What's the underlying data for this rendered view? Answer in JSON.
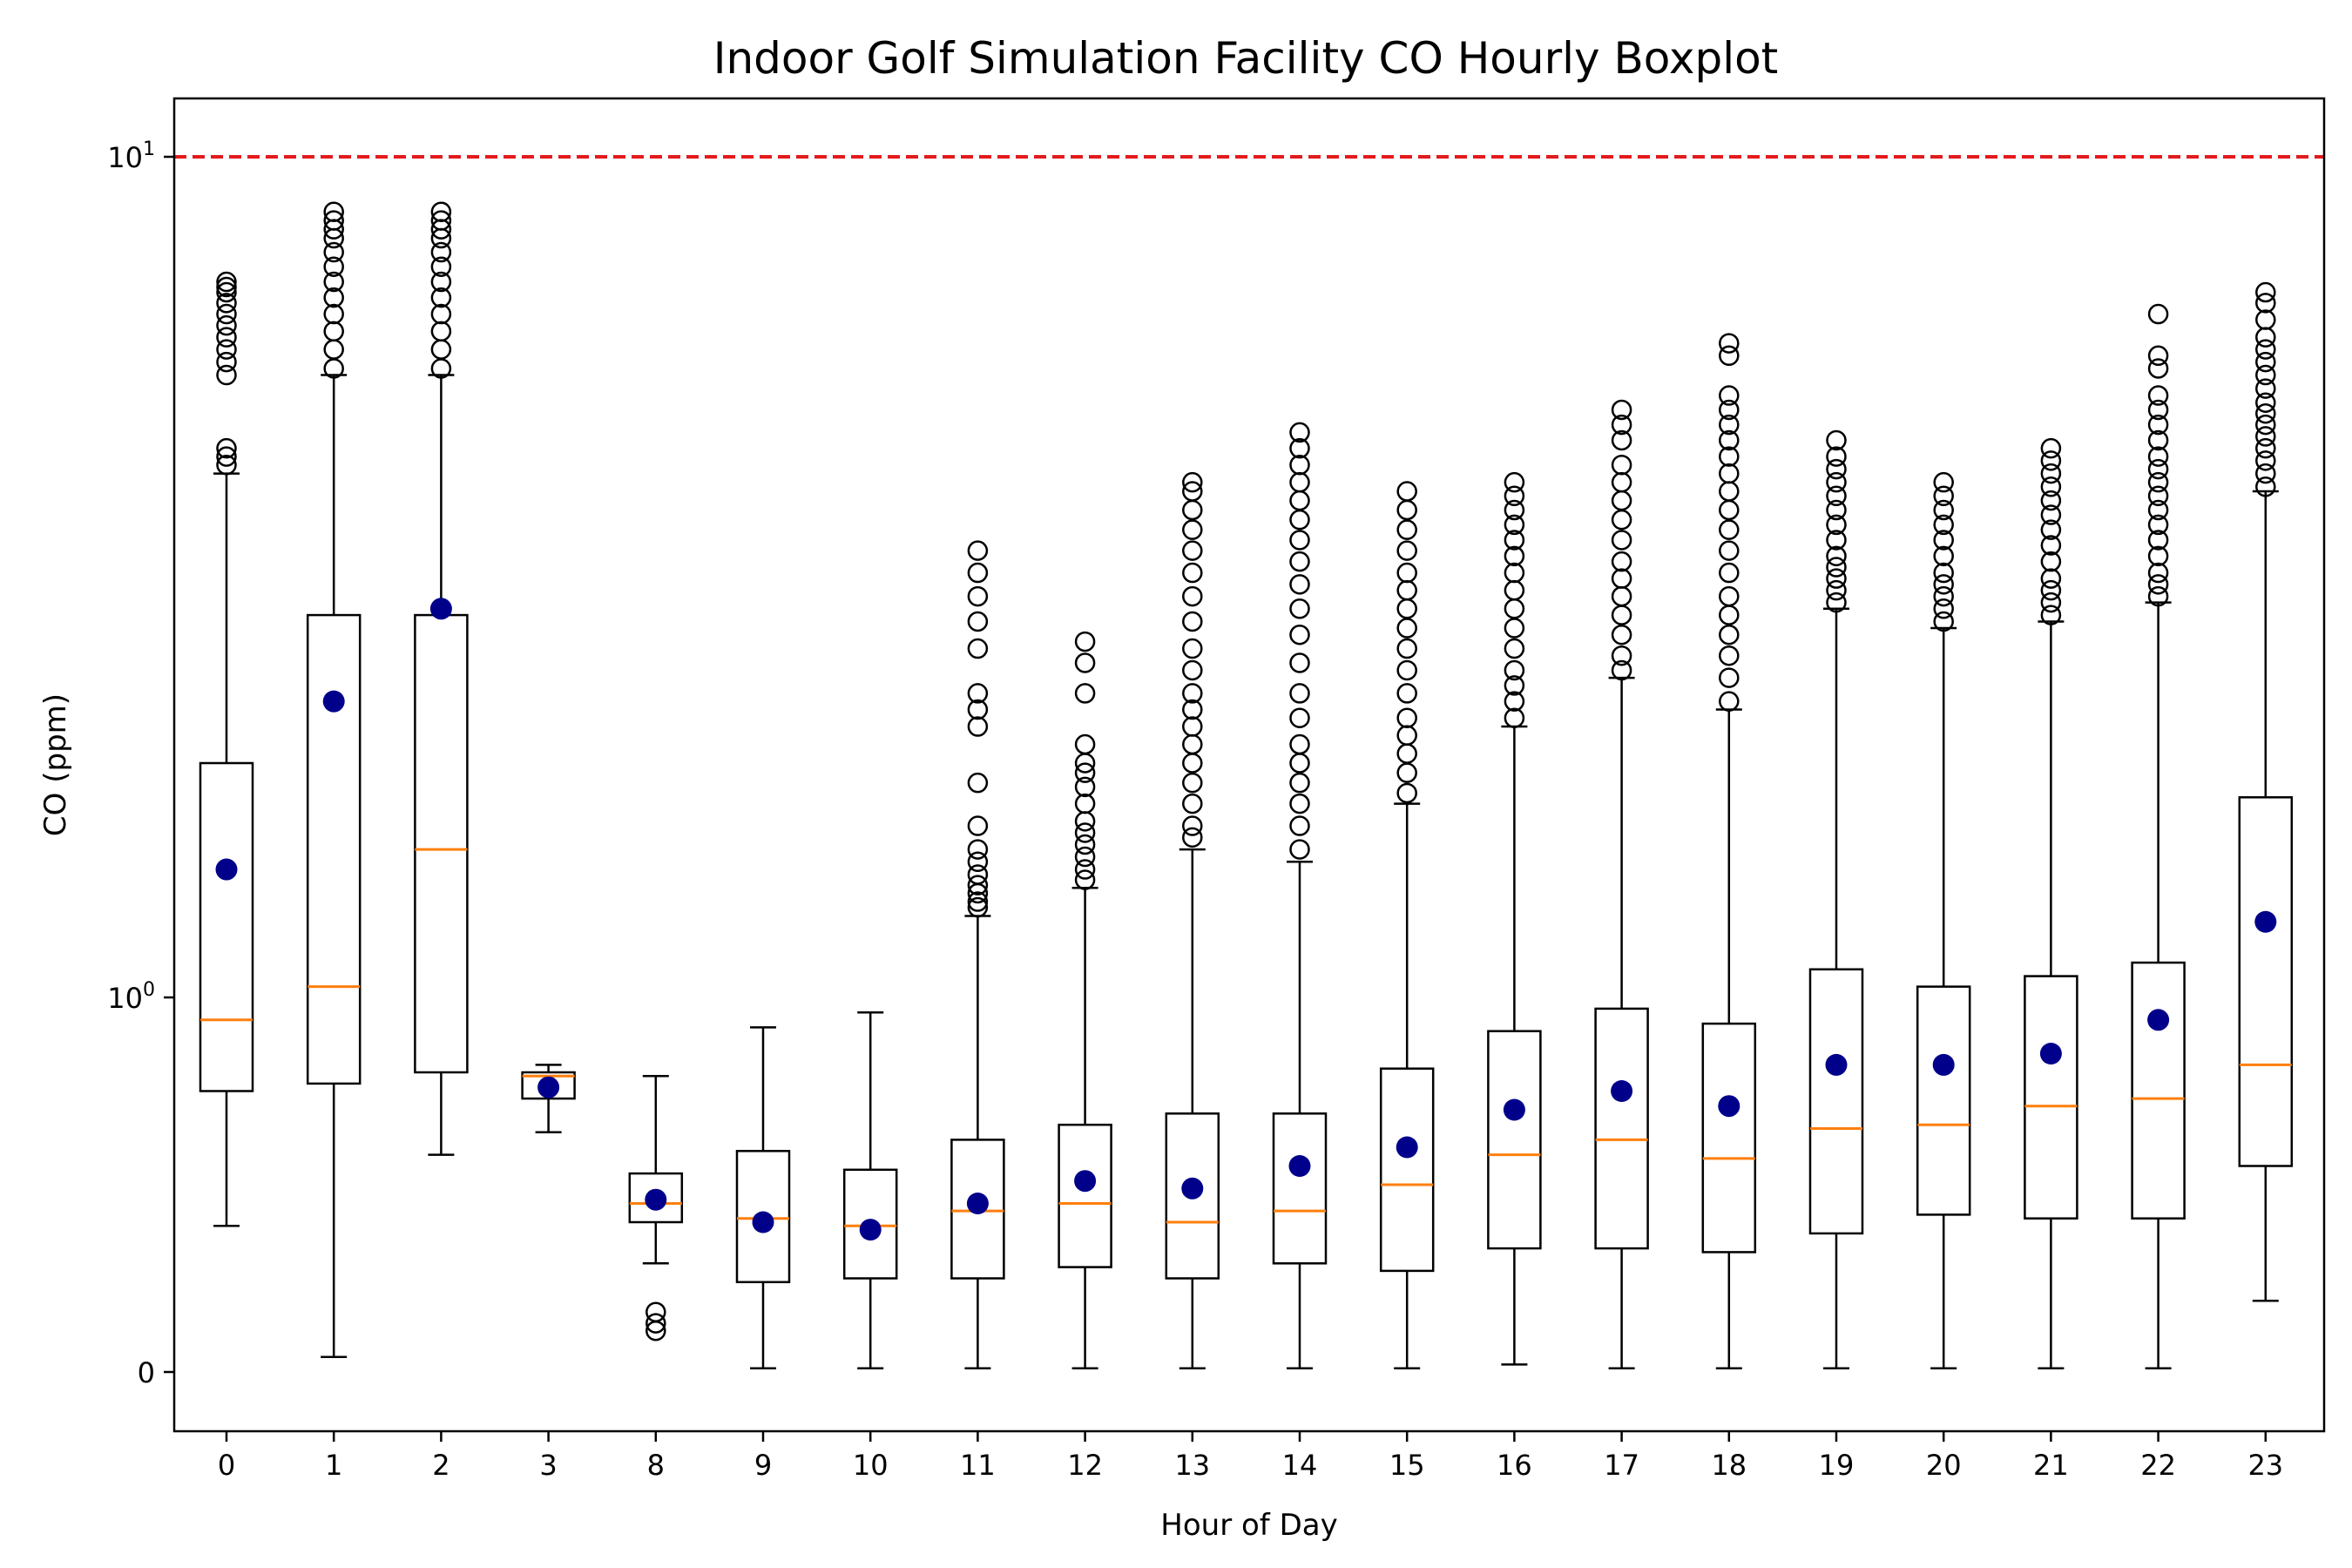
{
  "chart_data": {
    "type": "boxplot",
    "title": "Indoor Golf Simulation Facility CO Hourly Boxplot",
    "xlabel": "Hour of Day",
    "ylabel": "CO (ppm)",
    "yscale": "symlog",
    "y_ticks": [
      {
        "value": 0,
        "label": "0"
      },
      {
        "value": 1,
        "label": "10",
        "exp": "0"
      },
      {
        "value": 10,
        "label": "10",
        "exp": "1"
      }
    ],
    "threshold": {
      "value": 10,
      "color": "#e41a1c",
      "style": "dashed"
    },
    "colors": {
      "median": "#ff7f0e",
      "mean": "#00008b",
      "box": "#000000"
    },
    "categories": [
      "0",
      "1",
      "2",
      "3",
      "8",
      "9",
      "10",
      "11",
      "12",
      "13",
      "14",
      "15",
      "16",
      "17",
      "18",
      "19",
      "20",
      "21",
      "22",
      "23"
    ],
    "boxes": [
      {
        "whislo": 0.39,
        "q1": 0.75,
        "med": 0.94,
        "q3": 1.9,
        "whishi": 4.2,
        "mean": 1.42,
        "fliers_lo": [],
        "fliers_hi": [
          4.3,
          4.4,
          4.5,
          5.5,
          5.7,
          5.9,
          6.1,
          6.3,
          6.5,
          6.7,
          6.9,
          7.0,
          7.1
        ]
      },
      {
        "whislo": 0.04,
        "q1": 0.77,
        "med": 1.03,
        "q3": 2.85,
        "whishi": 5.5,
        "mean": 2.25,
        "fliers_lo": [],
        "fliers_hi": [
          5.6,
          5.9,
          6.2,
          6.5,
          6.8,
          7.1,
          7.4,
          7.7,
          8.0,
          8.2,
          8.4,
          8.6
        ]
      },
      {
        "whislo": 0.58,
        "q1": 0.8,
        "med": 1.5,
        "q3": 2.85,
        "whishi": 5.5,
        "mean": 2.9,
        "fliers_lo": [],
        "fliers_hi": [
          5.6,
          5.9,
          6.2,
          6.5,
          6.8,
          7.1,
          7.4,
          7.7,
          8.0,
          8.2,
          8.4,
          8.6
        ]
      },
      {
        "whislo": 0.64,
        "q1": 0.73,
        "med": 0.79,
        "q3": 0.8,
        "whishi": 0.82,
        "mean": 0.76,
        "fliers_lo": [],
        "fliers_hi": []
      },
      {
        "whislo": 0.29,
        "q1": 0.4,
        "med": 0.45,
        "q3": 0.53,
        "whishi": 0.79,
        "mean": 0.46,
        "fliers_lo": [
          0.11,
          0.13,
          0.16
        ],
        "fliers_hi": []
      },
      {
        "whislo": 0.01,
        "q1": 0.24,
        "med": 0.41,
        "q3": 0.59,
        "whishi": 0.92,
        "mean": 0.4,
        "fliers_lo": [],
        "fliers_hi": []
      },
      {
        "whislo": 0.01,
        "q1": 0.25,
        "med": 0.39,
        "q3": 0.54,
        "whishi": 0.96,
        "mean": 0.38,
        "fliers_lo": [],
        "fliers_hi": []
      },
      {
        "whislo": 0.01,
        "q1": 0.25,
        "med": 0.43,
        "q3": 0.62,
        "whishi": 1.25,
        "mean": 0.45,
        "fliers_lo": [],
        "fliers_hi": [
          1.28,
          1.3,
          1.33,
          1.36,
          1.4,
          1.45,
          1.5,
          1.6,
          1.8,
          2.1,
          2.2,
          2.3,
          2.6,
          2.8,
          3.0,
          3.2,
          3.4
        ]
      },
      {
        "whislo": 0.01,
        "q1": 0.28,
        "med": 0.45,
        "q3": 0.66,
        "whishi": 1.35,
        "mean": 0.51,
        "fliers_lo": [],
        "fliers_hi": [
          1.38,
          1.42,
          1.47,
          1.52,
          1.57,
          1.62,
          1.7,
          1.78,
          1.85,
          1.9,
          2.0,
          2.3,
          2.5,
          2.65
        ]
      },
      {
        "whislo": 0.01,
        "q1": 0.25,
        "med": 0.4,
        "q3": 0.69,
        "whishi": 1.5,
        "mean": 0.49,
        "fliers_lo": [],
        "fliers_hi": [
          1.55,
          1.6,
          1.7,
          1.8,
          1.9,
          2.0,
          2.1,
          2.2,
          2.3,
          2.45,
          2.6,
          2.8,
          3.0,
          3.2,
          3.4,
          3.6,
          3.8,
          4.0,
          4.1
        ]
      },
      {
        "whislo": 0.01,
        "q1": 0.29,
        "med": 0.43,
        "q3": 0.69,
        "whishi": 1.45,
        "mean": 0.55,
        "fliers_lo": [],
        "fliers_hi": [
          1.5,
          1.6,
          1.7,
          1.8,
          1.9,
          2.0,
          2.15,
          2.3,
          2.5,
          2.7,
          2.9,
          3.1,
          3.3,
          3.5,
          3.7,
          3.9,
          4.1,
          4.3,
          4.5,
          4.7
        ]
      },
      {
        "whislo": 0.01,
        "q1": 0.27,
        "med": 0.5,
        "q3": 0.81,
        "whishi": 1.7,
        "mean": 0.6,
        "fliers_lo": [],
        "fliers_hi": [
          1.75,
          1.85,
          1.95,
          2.05,
          2.15,
          2.3,
          2.45,
          2.6,
          2.75,
          2.9,
          3.05,
          3.2,
          3.4,
          3.6,
          3.8,
          4.0
        ]
      },
      {
        "whislo": 0.02,
        "q1": 0.33,
        "med": 0.58,
        "q3": 0.91,
        "whishi": 2.1,
        "mean": 0.7,
        "fliers_lo": [],
        "fliers_hi": [
          2.15,
          2.25,
          2.35,
          2.45,
          2.6,
          2.75,
          2.9,
          3.05,
          3.2,
          3.35,
          3.5,
          3.65,
          3.8,
          3.95,
          4.1
        ]
      },
      {
        "whislo": 0.01,
        "q1": 0.33,
        "med": 0.62,
        "q3": 0.97,
        "whishi": 2.4,
        "mean": 0.75,
        "fliers_lo": [],
        "fliers_hi": [
          2.45,
          2.55,
          2.7,
          2.85,
          3.0,
          3.15,
          3.3,
          3.5,
          3.7,
          3.9,
          4.1,
          4.3,
          4.6,
          4.8,
          5.0
        ]
      },
      {
        "whislo": 0.01,
        "q1": 0.32,
        "med": 0.57,
        "q3": 0.93,
        "whishi": 2.2,
        "mean": 0.71,
        "fliers_lo": [],
        "fliers_hi": [
          2.25,
          2.4,
          2.55,
          2.7,
          2.85,
          3.0,
          3.2,
          3.4,
          3.6,
          3.8,
          4.0,
          4.2,
          4.4,
          4.6,
          4.8,
          5.0,
          5.2,
          5.8,
          6.0
        ]
      },
      {
        "whislo": 0.01,
        "q1": 0.37,
        "med": 0.65,
        "q3": 1.08,
        "whishi": 2.9,
        "mean": 0.82,
        "fliers_lo": [],
        "fliers_hi": [
          2.95,
          3.05,
          3.15,
          3.25,
          3.35,
          3.5,
          3.65,
          3.8,
          3.95,
          4.1,
          4.25,
          4.4,
          4.6
        ]
      },
      {
        "whislo": 0.01,
        "q1": 0.42,
        "med": 0.66,
        "q3": 1.03,
        "whishi": 2.75,
        "mean": 0.82,
        "fliers_lo": [],
        "fliers_hi": [
          2.8,
          2.9,
          3.0,
          3.1,
          3.2,
          3.35,
          3.5,
          3.65,
          3.8,
          3.95,
          4.1
        ]
      },
      {
        "whislo": 0.01,
        "q1": 0.41,
        "med": 0.71,
        "q3": 1.06,
        "whishi": 2.8,
        "mean": 0.85,
        "fliers_lo": [],
        "fliers_hi": [
          2.85,
          2.95,
          3.05,
          3.15,
          3.3,
          3.45,
          3.6,
          3.75,
          3.9,
          4.05,
          4.2,
          4.35,
          4.5
        ]
      },
      {
        "whislo": 0.01,
        "q1": 0.41,
        "med": 0.73,
        "q3": 1.1,
        "whishi": 2.95,
        "mean": 0.94,
        "fliers_lo": [],
        "fliers_hi": [
          3.0,
          3.1,
          3.2,
          3.35,
          3.5,
          3.65,
          3.8,
          3.95,
          4.1,
          4.25,
          4.4,
          4.6,
          4.8,
          5.0,
          5.2,
          5.6,
          5.8,
          6.5
        ]
      },
      {
        "whislo": 0.19,
        "q1": 0.55,
        "med": 0.82,
        "q3": 1.73,
        "whishi": 4.0,
        "mean": 1.23,
        "fliers_lo": [],
        "fliers_hi": [
          4.05,
          4.2,
          4.35,
          4.5,
          4.65,
          4.8,
          4.95,
          5.1,
          5.3,
          5.5,
          5.7,
          5.9,
          6.1,
          6.4,
          6.7,
          6.9
        ]
      }
    ]
  }
}
